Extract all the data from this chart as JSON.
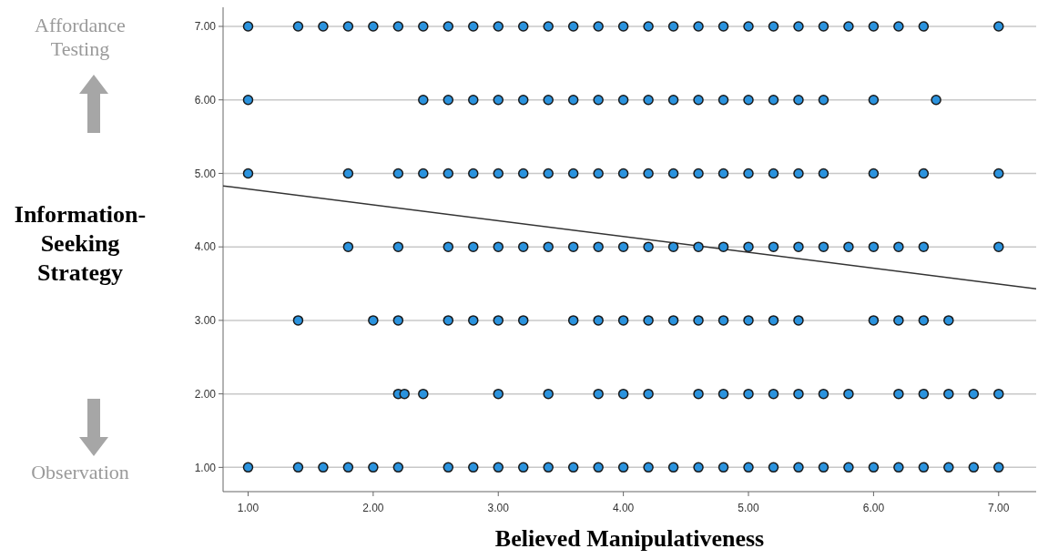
{
  "chart_data": {
    "type": "scatter",
    "xlabel": "Believed Manipulativeness",
    "ylabel": "Information-Seeking Strategy",
    "annotations": [
      "Affordance Testing",
      "Observation"
    ],
    "xlim": [
      0.8,
      7.3
    ],
    "ylim": [
      0.67,
      7.26
    ],
    "xticks": [
      {
        "value": 1,
        "label": "1.00"
      },
      {
        "value": 2,
        "label": "2.00"
      },
      {
        "value": 3,
        "label": "3.00"
      },
      {
        "value": 4,
        "label": "4.00"
      },
      {
        "value": 5,
        "label": "5.00"
      },
      {
        "value": 6,
        "label": "6.00"
      },
      {
        "value": 7,
        "label": "7.00"
      }
    ],
    "yticks": [
      {
        "value": 1,
        "label": "1.00"
      },
      {
        "value": 2,
        "label": "2.00"
      },
      {
        "value": 3,
        "label": "3.00"
      },
      {
        "value": 4,
        "label": "4.00"
      },
      {
        "value": 5,
        "label": "5.00"
      },
      {
        "value": 6,
        "label": "6.00"
      },
      {
        "value": 7,
        "label": "7.00"
      }
    ],
    "grid": "y",
    "marker": "circle",
    "series": [
      {
        "color": "#2b93de",
        "x": [
          1,
          1.4,
          1.6,
          1.8,
          2,
          2.2,
          2.4,
          2.6,
          2.8,
          3,
          3.2,
          3.4,
          3.6,
          3.8,
          4,
          4.2,
          4.4,
          4.6,
          4.8,
          5,
          5.2,
          5.4,
          5.6,
          5.8,
          6,
          6.2,
          6.4,
          7,
          1,
          2.4,
          2.6,
          2.8,
          3,
          3.2,
          3.4,
          3.6,
          3.8,
          4,
          4.2,
          4.4,
          4.6,
          4.8,
          5,
          5.2,
          5.4,
          5.6,
          6,
          6.5,
          1,
          1.8,
          2.2,
          2.4,
          2.6,
          2.8,
          3,
          3.2,
          3.4,
          3.6,
          3.8,
          4,
          4.2,
          4.4,
          4.6,
          4.8,
          5,
          5.2,
          5.4,
          5.6,
          6,
          6.4,
          7,
          1.8,
          2.2,
          2.6,
          2.8,
          3,
          3.2,
          3.4,
          3.6,
          3.8,
          4,
          4.2,
          4.4,
          4.6,
          4.8,
          5,
          5.2,
          5.4,
          5.6,
          5.8,
          6,
          6.2,
          6.4,
          7,
          1.4,
          2,
          2.2,
          2.6,
          2.8,
          3,
          3.2,
          3.6,
          3.8,
          4,
          4.2,
          4.4,
          4.6,
          4.8,
          5,
          5.2,
          5.4,
          6,
          6.2,
          6.4,
          6.6,
          2.2,
          2.25,
          2.4,
          3,
          3.4,
          3.8,
          4,
          4.2,
          4.6,
          4.8,
          5,
          5.2,
          5.4,
          5.6,
          5.8,
          6.2,
          6.4,
          6.6,
          6.8,
          7,
          1,
          1.4,
          1.6,
          1.8,
          2,
          2.2,
          2.6,
          2.8,
          3,
          3.2,
          3.4,
          3.6,
          3.8,
          4,
          4.2,
          4.4,
          4.6,
          4.8,
          5,
          5.2,
          5.4,
          5.6,
          5.8,
          6,
          6.2,
          6.4,
          6.6,
          6.8,
          7
        ],
        "values": [
          7,
          7,
          7,
          7,
          7,
          7,
          7,
          7,
          7,
          7,
          7,
          7,
          7,
          7,
          7,
          7,
          7,
          7,
          7,
          7,
          7,
          7,
          7,
          7,
          7,
          7,
          7,
          7,
          6,
          6,
          6,
          6,
          6,
          6,
          6,
          6,
          6,
          6,
          6,
          6,
          6,
          6,
          6,
          6,
          6,
          6,
          6,
          6,
          5,
          5,
          5,
          5,
          5,
          5,
          5,
          5,
          5,
          5,
          5,
          5,
          5,
          5,
          5,
          5,
          5,
          5,
          5,
          5,
          5,
          5,
          5,
          4,
          4,
          4,
          4,
          4,
          4,
          4,
          4,
          4,
          4,
          4,
          4,
          4,
          4,
          4,
          4,
          4,
          4,
          4,
          4,
          4,
          4,
          4,
          3,
          3,
          3,
          3,
          3,
          3,
          3,
          3,
          3,
          3,
          3,
          3,
          3,
          3,
          3,
          3,
          3,
          3,
          3,
          3,
          3,
          2,
          2,
          2,
          2,
          2,
          2,
          2,
          2,
          2,
          2,
          2,
          2,
          2,
          2,
          2,
          2,
          2,
          2,
          2,
          2,
          1,
          1,
          1,
          1,
          1,
          1,
          1,
          1,
          1,
          1,
          1,
          1,
          1,
          1,
          1,
          1,
          1,
          1,
          1,
          1,
          1,
          1,
          1,
          1,
          1,
          1,
          1,
          1,
          1
        ]
      },
      {
        "type": "line",
        "color": "#333333",
        "marker": "none",
        "x": [
          0.8,
          7.3
        ],
        "values": [
          4.83,
          3.43
        ]
      }
    ]
  }
}
